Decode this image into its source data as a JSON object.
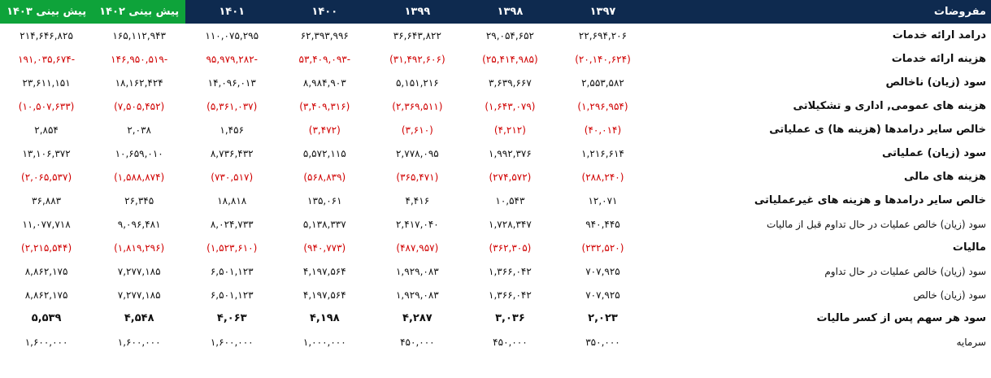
{
  "header": {
    "label": "مفروضات",
    "years": [
      "۱۳۹۷",
      "۱۳۹۸",
      "۱۳۹۹",
      "۱۴۰۰",
      "۱۴۰۱",
      "پیش بینی ۱۴۰۲",
      "پیش بینی ۱۴۰۳"
    ]
  },
  "colors": {
    "header_bg": "#0e2a4f",
    "forecast_header_bg": "#0ea33a",
    "negative_text": "#d00000"
  },
  "rows": [
    {
      "label": "درامد ارائه خدمات",
      "values": [
        "۲۲,۶۹۴,۲۰۶",
        "۲۹,۰۵۴,۶۵۲",
        "۳۶,۶۴۳,۸۲۲",
        "۶۲,۳۹۳,۹۹۶",
        "۱۱۰,۰۷۵,۲۹۵",
        "۱۶۵,۱۱۲,۹۴۳",
        "۲۱۴,۶۴۶,۸۲۵"
      ]
    },
    {
      "label": "هزینه ارائه خدمات",
      "values": [
        "(۲۰,۱۴۰,۶۲۴)",
        "(۲۵,۴۱۴,۹۸۵)",
        "(۳۱,۴۹۲,۶۰۶)",
        "-۵۳,۴۰۹,۰۹۳",
        "-۹۵,۹۷۹,۲۸۲",
        "-۱۴۶,۹۵۰,۵۱۹",
        "-۱۹۱,۰۳۵,۶۷۴"
      ]
    },
    {
      "label": "سود (زیان) ناخالص",
      "values": [
        "۲,۵۵۳,۵۸۲",
        "۳,۶۳۹,۶۶۷",
        "۵,۱۵۱,۲۱۶",
        "۸,۹۸۴,۹۰۳",
        "۱۴,۰۹۶,۰۱۳",
        "۱۸,۱۶۲,۴۲۴",
        "۲۳,۶۱۱,۱۵۱"
      ]
    },
    {
      "label": "هزینه های عمومی, اداری و تشکیلاتی",
      "values": [
        "(۱,۲۹۶,۹۵۴)",
        "(۱,۶۴۳,۰۷۹)",
        "(۲,۳۶۹,۵۱۱)",
        "(۳,۴۰۹,۳۱۶)",
        "(۵,۳۶۱,۰۳۷)",
        "(۷,۵۰۵,۴۵۲)",
        "(۱۰,۵۰۷,۶۳۳)"
      ]
    },
    {
      "label": "خالص سایر درامدها (هزینه ها) ی عملیاتی",
      "values": [
        "(۴۰,۰۱۴)",
        "(۴,۲۱۲)",
        "(۳,۶۱۰)",
        "(۳,۴۷۲)",
        "۱,۴۵۶",
        "۲,۰۳۸",
        "۲,۸۵۴"
      ]
    },
    {
      "label": "سود (زیان) عملیاتی",
      "values": [
        "۱,۲۱۶,۶۱۴",
        "۱,۹۹۲,۳۷۶",
        "۲,۷۷۸,۰۹۵",
        "۵,۵۷۲,۱۱۵",
        "۸,۷۳۶,۴۳۲",
        "۱۰,۶۵۹,۰۱۰",
        "۱۳,۱۰۶,۳۷۲"
      ]
    },
    {
      "label": "هزینه های مالی",
      "values": [
        "(۲۸۸,۲۴۰)",
        "(۲۷۴,۵۷۲)",
        "(۳۶۵,۴۷۱)",
        "(۵۶۸,۸۳۹)",
        "(۷۳۰,۵۱۷)",
        "(۱,۵۸۸,۸۷۴)",
        "(۲,۰۶۵,۵۳۷)"
      ]
    },
    {
      "label": "خالص سایر درامدها و هزینه های غیرعملیاتی",
      "values": [
        "۱۲,۰۷۱",
        "۱۰,۵۴۳",
        "۴,۴۱۶",
        "۱۳۵,۰۶۱",
        "۱۸,۸۱۸",
        "۲۶,۳۴۵",
        "۳۶,۸۸۳"
      ]
    },
    {
      "label": "سود (زیان) خالص عملیات در حال تداوم قبل از مالیات",
      "values": [
        "۹۴۰,۴۴۵",
        "۱,۷۲۸,۳۴۷",
        "۲,۴۱۷,۰۴۰",
        "۵,۱۳۸,۳۳۷",
        "۸,۰۲۴,۷۳۳",
        "۹,۰۹۶,۴۸۱",
        "۱۱,۰۷۷,۷۱۸"
      ]
    },
    {
      "label": "مالیات",
      "values": [
        "(۲۳۲,۵۲۰)",
        "(۳۶۲,۳۰۵)",
        "(۴۸۷,۹۵۷)",
        "(۹۴۰,۷۷۳)",
        "(۱,۵۲۳,۶۱۰)",
        "(۱,۸۱۹,۲۹۶)",
        "(۲,۲۱۵,۵۴۴)"
      ]
    },
    {
      "label": "سود (زیان) خالص عملیات در حال تداوم",
      "values": [
        "۷۰۷,۹۲۵",
        "۱,۳۶۶,۰۴۲",
        "۱,۹۲۹,۰۸۳",
        "۴,۱۹۷,۵۶۴",
        "۶,۵۰۱,۱۲۳",
        "۷,۲۷۷,۱۸۵",
        "۸,۸۶۲,۱۷۵"
      ]
    },
    {
      "label": "سود (زیان) خالص",
      "values": [
        "۷۰۷,۹۲۵",
        "۱,۳۶۶,۰۴۲",
        "۱,۹۲۹,۰۸۳",
        "۴,۱۹۷,۵۶۴",
        "۶,۵۰۱,۱۲۳",
        "۷,۲۷۷,۱۸۵",
        "۸,۸۶۲,۱۷۵"
      ]
    },
    {
      "label": "سود هر سهم پس از کسر مالیات",
      "values": [
        "۲,۰۲۳",
        "۳,۰۳۶",
        "۴,۲۸۷",
        "۴,۱۹۸",
        "۴,۰۶۳",
        "۴,۵۴۸",
        "۵,۵۳۹"
      ]
    },
    {
      "label": "سرمایه",
      "values": [
        "۳۵۰,۰۰۰",
        "۴۵۰,۰۰۰",
        "۴۵۰,۰۰۰",
        "۱,۰۰۰,۰۰۰",
        "۱,۶۰۰,۰۰۰",
        "۱,۶۰۰,۰۰۰",
        "۱,۶۰۰,۰۰۰"
      ]
    }
  ]
}
